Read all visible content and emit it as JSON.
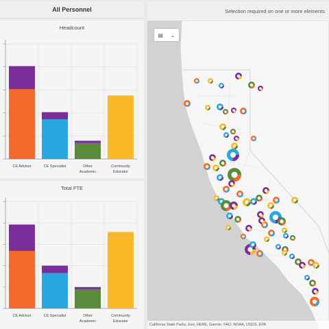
{
  "header": {
    "title": "All Personnel"
  },
  "map_header": {
    "status": "Selection required on one or more elements"
  },
  "colors": {
    "ce_advisor_bottom": "#f26b2b",
    "purple": "#7b2d9a",
    "ce_specialist": "#29a8e0",
    "other_academic": "#5a8b3a",
    "community_educator": "#fbb829"
  },
  "charts": [
    {
      "title": "Headcount",
      "chart_data": {
        "type": "bar",
        "categories": [
          "CE Advisor",
          "CE Specialist",
          "Other Academic",
          "Community Educator"
        ],
        "series": [
          {
            "values": [
              88,
              50,
              20,
              0
            ],
            "color": "#f26b2b_or_series"
          },
          {
            "values": [
              29,
              9,
              3,
              0
            ]
          },
          {
            "values": [
              0,
              0,
              0,
              80
            ]
          }
        ],
        "ylim": [
          0,
          145
        ]
      }
    },
    {
      "title": "Total FTE",
      "chart_data": {
        "type": "bar",
        "categories": [
          "CE Advisor",
          "CE Specialist",
          "Other Academic",
          "Community Educator"
        ],
        "series": [
          {
            "values": [
              70,
              43,
              23,
              0
            ]
          },
          {
            "values": [
              32,
              9,
              3,
              0
            ]
          },
          {
            "values": [
              0,
              0,
              0,
              93
            ]
          }
        ],
        "ylim": [
          0,
          130
        ]
      }
    }
  ],
  "map": {
    "widget_icon": "layer-list-icon",
    "widget_chevron": "chevron-down-icon",
    "attribution": "California State Parks, Esri, HERE, Garmin, FAO, NOAA, USGS, EPA"
  }
}
